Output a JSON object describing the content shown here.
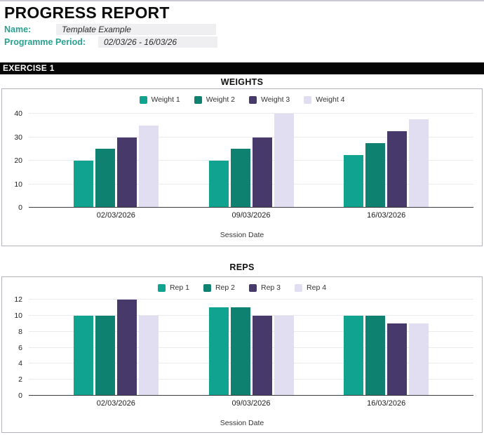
{
  "header": {
    "title": "PROGRESS REPORT",
    "fields": [
      {
        "label": "Name:",
        "value": "Template Example"
      },
      {
        "label": "Programme Period:",
        "value": "02/03/26 - 16/03/26"
      }
    ]
  },
  "section": {
    "title": "EXERCISE 1"
  },
  "colors": {
    "accent_teal_label": "#2aa18f",
    "section_bar_bg": "#050505",
    "section_bar_text": "#ffffff",
    "field_bg": "#efeff1",
    "chart_border": "#b3b3bd",
    "gridline": "#e9e9ee",
    "axis_line": "#3d3d3d",
    "series_palette": [
      "#10a390",
      "#0e8170",
      "#473a6a",
      "#e2def1"
    ]
  },
  "chart_data": [
    {
      "type": "bar",
      "title": "WEIGHTS",
      "categories": [
        "02/03/2026",
        "09/03/2026",
        "16/03/2026"
      ],
      "series": [
        {
          "name": "Weight 1",
          "color": "#10a390",
          "values": [
            20,
            20,
            22.5
          ]
        },
        {
          "name": "Weight 2",
          "color": "#0e8170",
          "values": [
            25,
            25,
            27.5
          ]
        },
        {
          "name": "Weight 3",
          "color": "#473a6a",
          "values": [
            30,
            30,
            32.5
          ]
        },
        {
          "name": "Weight 4",
          "color": "#e2def1",
          "values": [
            35,
            40,
            37.5
          ]
        }
      ],
      "xlabel": "Session Date",
      "ylabel": "",
      "ylim": [
        0,
        40
      ],
      "ytick_step": 10,
      "grid": true,
      "legend_position": "top"
    },
    {
      "type": "bar",
      "title": "REPS",
      "categories": [
        "02/03/2026",
        "09/03/2026",
        "16/03/2026"
      ],
      "series": [
        {
          "name": "Rep 1",
          "color": "#10a390",
          "values": [
            10,
            11,
            10
          ]
        },
        {
          "name": "Rep 2",
          "color": "#0e8170",
          "values": [
            10,
            11,
            10
          ]
        },
        {
          "name": "Rep 3",
          "color": "#473a6a",
          "values": [
            12,
            10,
            9
          ]
        },
        {
          "name": "Rep 4",
          "color": "#e2def1",
          "values": [
            10,
            10,
            9
          ]
        }
      ],
      "xlabel": "Session Date",
      "ylabel": "",
      "ylim": [
        0,
        12
      ],
      "ytick_step": 2,
      "grid": true,
      "legend_position": "top"
    }
  ]
}
